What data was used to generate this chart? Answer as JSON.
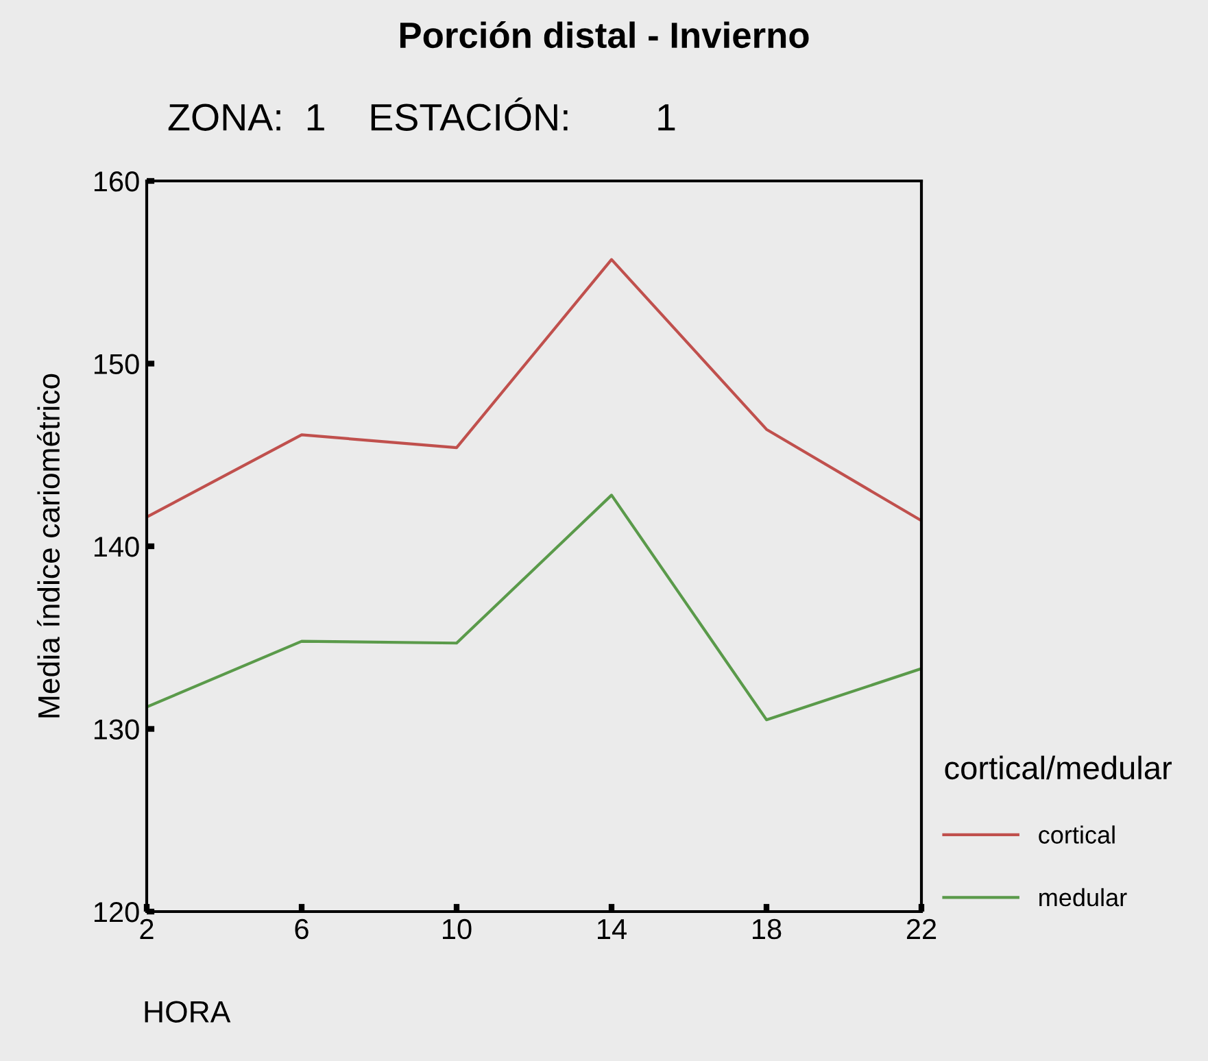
{
  "chart_data": {
    "type": "line",
    "title": "Porción distal - Invierno",
    "subtitle": "ZONA:  1    ESTACIÓN:        1",
    "xlabel": "HORA",
    "ylabel": "Media índice cariométrico",
    "legend_title": "cortical/medular",
    "x": [
      2,
      6,
      10,
      14,
      18,
      22
    ],
    "series": [
      {
        "name": "cortical",
        "color": "#c0504d",
        "values": [
          141.6,
          146.1,
          145.4,
          155.7,
          146.4,
          141.4
        ]
      },
      {
        "name": "medular",
        "color": "#5a9a4a",
        "values": [
          131.2,
          134.8,
          134.7,
          142.8,
          130.5,
          133.3
        ]
      }
    ],
    "xlim": [
      2,
      22
    ],
    "xticks": [
      2,
      6,
      10,
      14,
      18,
      22
    ],
    "ylim": [
      120,
      160
    ],
    "yticks": [
      120,
      130,
      140,
      150,
      160
    ],
    "grid": false,
    "legend": "right",
    "marker": "none",
    "line_style": "solid"
  }
}
